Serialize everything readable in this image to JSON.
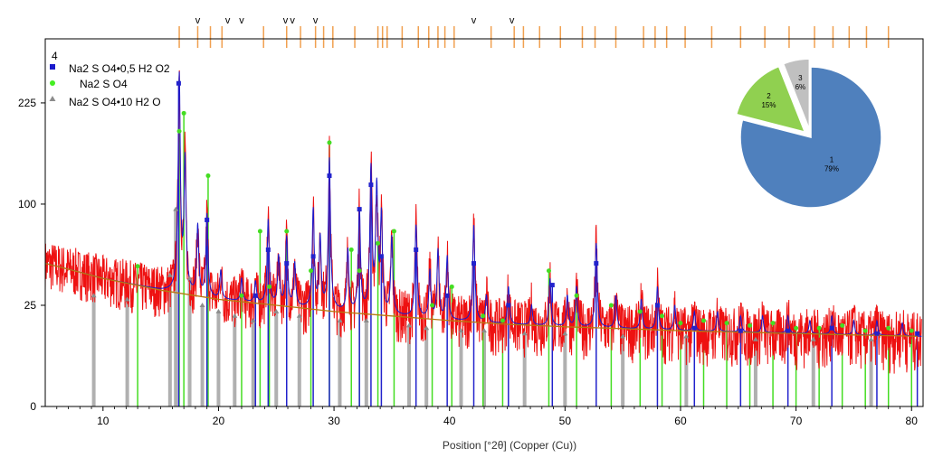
{
  "chart_data": {
    "type": "line",
    "xlabel": "Position [°2θ] (Copper (Cu))",
    "x_ticks": [
      10,
      20,
      30,
      40,
      50,
      60,
      70,
      80
    ],
    "y_ticks": [
      0,
      25,
      100,
      225
    ],
    "xlim": [
      5,
      81
    ],
    "y_scale": "sqrt",
    "ylim": [
      0,
      330
    ],
    "grid": false,
    "panel_label": "4",
    "legend_position": "top-left",
    "legend": [
      {
        "label": "Na2 S O4•0,5 H2 O2",
        "marker": "square",
        "color": "#1a1acc"
      },
      {
        "label": "Na2 S O4",
        "marker": "circle",
        "color": "#44ee22"
      },
      {
        "label": "Na2 S O4•10 H2 O",
        "marker": "triangle",
        "color": "#8c8c8c"
      }
    ],
    "colors": {
      "observed": "#ee1111",
      "calculated": "#1a1acc",
      "background": "#b87a10",
      "reference_ticks": "#f0a050",
      "phase1_sticks": "#2222cc",
      "phase2_sticks": "#44dd22",
      "phase3_sticks": "#b0b0b0"
    },
    "background_curve": [
      [
        5,
        50
      ],
      [
        10,
        40
      ],
      [
        15,
        33
      ],
      [
        20,
        28
      ],
      [
        25,
        25
      ],
      [
        30,
        22
      ],
      [
        35,
        20
      ],
      [
        40,
        18
      ],
      [
        45,
        16.5
      ],
      [
        50,
        15.5
      ],
      [
        55,
        14.8
      ],
      [
        60,
        14
      ],
      [
        65,
        13.5
      ],
      [
        70,
        13
      ],
      [
        75,
        12.5
      ],
      [
        81,
        12
      ]
    ],
    "peaks": [
      {
        "x": 16.6,
        "y": 270
      },
      {
        "x": 17.1,
        "y": 150
      },
      {
        "x": 18.2,
        "y": 80
      },
      {
        "x": 19.0,
        "y": 90
      },
      {
        "x": 20.2,
        "y": 45
      },
      {
        "x": 22.0,
        "y": 40
      },
      {
        "x": 23.2,
        "y": 38
      },
      {
        "x": 24.3,
        "y": 85
      },
      {
        "x": 25.2,
        "y": 55
      },
      {
        "x": 25.9,
        "y": 70
      },
      {
        "x": 26.6,
        "y": 50
      },
      {
        "x": 28.2,
        "y": 95
      },
      {
        "x": 28.8,
        "y": 70
      },
      {
        "x": 29.6,
        "y": 150
      },
      {
        "x": 31.2,
        "y": 60
      },
      {
        "x": 32.2,
        "y": 95
      },
      {
        "x": 33.2,
        "y": 140
      },
      {
        "x": 33.7,
        "y": 120
      },
      {
        "x": 34.1,
        "y": 90
      },
      {
        "x": 35.0,
        "y": 70
      },
      {
        "x": 37.1,
        "y": 80
      },
      {
        "x": 38.3,
        "y": 45
      },
      {
        "x": 39.0,
        "y": 60
      },
      {
        "x": 39.8,
        "y": 55
      },
      {
        "x": 42.1,
        "y": 80
      },
      {
        "x": 43.2,
        "y": 30
      },
      {
        "x": 45.1,
        "y": 35
      },
      {
        "x": 47.1,
        "y": 25
      },
      {
        "x": 48.7,
        "y": 40
      },
      {
        "x": 50.2,
        "y": 30
      },
      {
        "x": 51.0,
        "y": 35
      },
      {
        "x": 52.7,
        "y": 65
      },
      {
        "x": 54.4,
        "y": 30
      },
      {
        "x": 56.6,
        "y": 28
      },
      {
        "x": 58.0,
        "y": 35
      },
      {
        "x": 59.5,
        "y": 25
      },
      {
        "x": 61.2,
        "y": 22
      },
      {
        "x": 63.2,
        "y": 22
      },
      {
        "x": 65.2,
        "y": 20
      },
      {
        "x": 67.1,
        "y": 20
      },
      {
        "x": 69.3,
        "y": 20
      },
      {
        "x": 71.2,
        "y": 18
      },
      {
        "x": 73.1,
        "y": 20
      },
      {
        "x": 75.0,
        "y": 18
      },
      {
        "x": 77.0,
        "y": 18
      },
      {
        "x": 79.2,
        "y": 17
      }
    ],
    "phase1_sticks": [
      {
        "x": 16.55,
        "y": 255
      },
      {
        "x": 19.0,
        "y": 85
      },
      {
        "x": 23.2,
        "y": 30
      },
      {
        "x": 24.3,
        "y": 60
      },
      {
        "x": 25.9,
        "y": 50
      },
      {
        "x": 28.2,
        "y": 55
      },
      {
        "x": 29.6,
        "y": 130
      },
      {
        "x": 32.2,
        "y": 95
      },
      {
        "x": 33.2,
        "y": 120
      },
      {
        "x": 34.1,
        "y": 55
      },
      {
        "x": 37.1,
        "y": 60
      },
      {
        "x": 39.8,
        "y": 30
      },
      {
        "x": 42.1,
        "y": 50
      },
      {
        "x": 45.1,
        "y": 25
      },
      {
        "x": 48.9,
        "y": 36
      },
      {
        "x": 52.7,
        "y": 50
      },
      {
        "x": 58.0,
        "y": 25
      },
      {
        "x": 61.2,
        "y": 15
      },
      {
        "x": 65.2,
        "y": 14
      },
      {
        "x": 69.3,
        "y": 14
      },
      {
        "x": 73.1,
        "y": 15
      },
      {
        "x": 77.0,
        "y": 13
      },
      {
        "x": 80.5,
        "y": 13
      }
    ],
    "phase2_sticks": [
      {
        "x": 13.0,
        "y": 48
      },
      {
        "x": 16.6,
        "y": 185
      },
      {
        "x": 17.0,
        "y": 210
      },
      {
        "x": 19.1,
        "y": 130
      },
      {
        "x": 22.0,
        "y": 30
      },
      {
        "x": 23.6,
        "y": 75
      },
      {
        "x": 24.4,
        "y": 35
      },
      {
        "x": 25.9,
        "y": 75
      },
      {
        "x": 28.0,
        "y": 45
      },
      {
        "x": 29.6,
        "y": 170
      },
      {
        "x": 31.5,
        "y": 60
      },
      {
        "x": 32.2,
        "y": 45
      },
      {
        "x": 33.8,
        "y": 65
      },
      {
        "x": 35.2,
        "y": 75
      },
      {
        "x": 38.5,
        "y": 25
      },
      {
        "x": 40.2,
        "y": 35
      },
      {
        "x": 42.9,
        "y": 20
      },
      {
        "x": 44.6,
        "y": 18
      },
      {
        "x": 48.6,
        "y": 45
      },
      {
        "x": 51.0,
        "y": 30
      },
      {
        "x": 54.0,
        "y": 25
      },
      {
        "x": 56.5,
        "y": 22
      },
      {
        "x": 58.4,
        "y": 20
      },
      {
        "x": 60.0,
        "y": 17
      },
      {
        "x": 62.0,
        "y": 18
      },
      {
        "x": 64.0,
        "y": 17
      },
      {
        "x": 66.0,
        "y": 16
      },
      {
        "x": 68.0,
        "y": 17
      },
      {
        "x": 70.0,
        "y": 15
      },
      {
        "x": 72.0,
        "y": 15
      },
      {
        "x": 74.0,
        "y": 16
      },
      {
        "x": 76.0,
        "y": 14
      },
      {
        "x": 78.0,
        "y": 15
      },
      {
        "x": 80.0,
        "y": 14
      }
    ],
    "phase3_sticks": [
      {
        "x": 9.2,
        "y": 30
      },
      {
        "x": 12.1,
        "y": 28
      },
      {
        "x": 15.8,
        "y": 42
      },
      {
        "x": 16.3,
        "y": 95
      },
      {
        "x": 17.5,
        "y": 40
      },
      {
        "x": 18.6,
        "y": 25
      },
      {
        "x": 20.0,
        "y": 22
      },
      {
        "x": 21.4,
        "y": 20
      },
      {
        "x": 23.0,
        "y": 18
      },
      {
        "x": 25.0,
        "y": 22
      },
      {
        "x": 27.0,
        "y": 20
      },
      {
        "x": 30.5,
        "y": 18
      },
      {
        "x": 32.8,
        "y": 18
      },
      {
        "x": 36.5,
        "y": 16
      },
      {
        "x": 38.0,
        "y": 15
      },
      {
        "x": 41.0,
        "y": 14
      },
      {
        "x": 43.0,
        "y": 14
      },
      {
        "x": 46.5,
        "y": 13
      },
      {
        "x": 50.0,
        "y": 13
      },
      {
        "x": 55.0,
        "y": 12
      },
      {
        "x": 60.5,
        "y": 12
      },
      {
        "x": 66.5,
        "y": 11
      },
      {
        "x": 71.5,
        "y": 11
      },
      {
        "x": 76.5,
        "y": 11
      }
    ],
    "reference_marks": [
      16.6,
      18.2,
      19.3,
      20.3,
      23.9,
      25.9,
      27.1,
      28.4,
      29.1,
      29.9,
      31.8,
      33.8,
      34.2,
      34.6,
      35.9,
      37.3,
      38.2,
      39.0,
      39.6,
      40.4,
      43.6,
      45.6,
      46.4,
      47.8,
      49.6,
      51.5,
      52.6,
      54.4,
      56.8,
      57.8,
      58.8,
      60.4,
      62.7,
      65.2,
      67.3,
      69.4,
      71.6,
      73.2,
      74.6,
      76.1,
      78.0
    ],
    "check_marks": [
      {
        "x": 18.2,
        "label": "v"
      },
      {
        "x": 20.8,
        "label": "v"
      },
      {
        "x": 22.0,
        "label": "v"
      },
      {
        "x": 25.8,
        "label": "v"
      },
      {
        "x": 26.4,
        "label": "v"
      },
      {
        "x": 28.4,
        "label": "v"
      },
      {
        "x": 42.1,
        "label": "v"
      },
      {
        "x": 45.4,
        "label": "v"
      }
    ],
    "inset_pie": {
      "type": "pie",
      "slices": [
        {
          "label": "1",
          "value": 79,
          "text": "79%",
          "color": "#4f80bd"
        },
        {
          "label": "2",
          "value": 15,
          "text": "15%",
          "color": "#90d050"
        },
        {
          "label": "3",
          "value": 6,
          "text": "6%",
          "color": "#c0c0c0"
        }
      ]
    }
  }
}
